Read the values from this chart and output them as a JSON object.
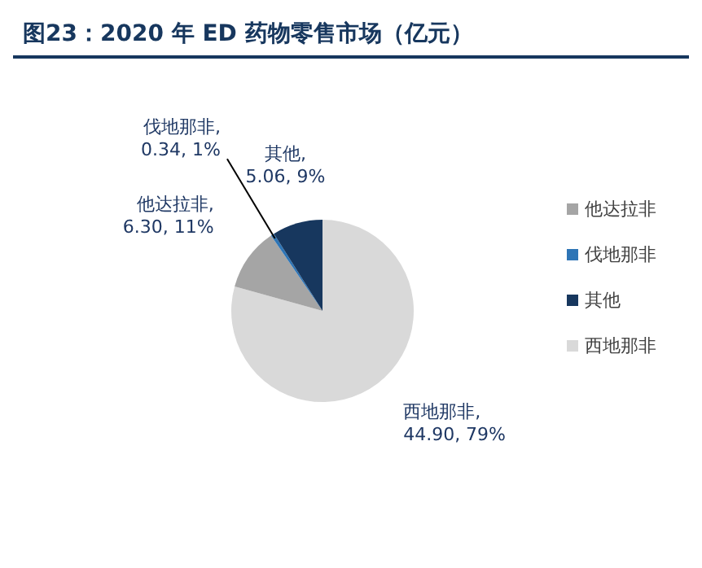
{
  "chart_data": {
    "type": "pie",
    "title": "图23：2020 年 ED 药物零售市场（亿元）",
    "categories": [
      "西地那非",
      "他达拉非",
      "伐地那非",
      "其他"
    ],
    "values": [
      44.9,
      6.3,
      0.34,
      5.06
    ],
    "colors": [
      "#d9d9d9",
      "#a5a5a5",
      "#2e75b6",
      "#17375e"
    ],
    "value_labels": [
      "西地那非, 44.90, 79%",
      "他达拉非, 6.30, 11%",
      "伐地那非, 0.34, 1%",
      "其他, 5.06, 9%"
    ],
    "legend": "right"
  }
}
